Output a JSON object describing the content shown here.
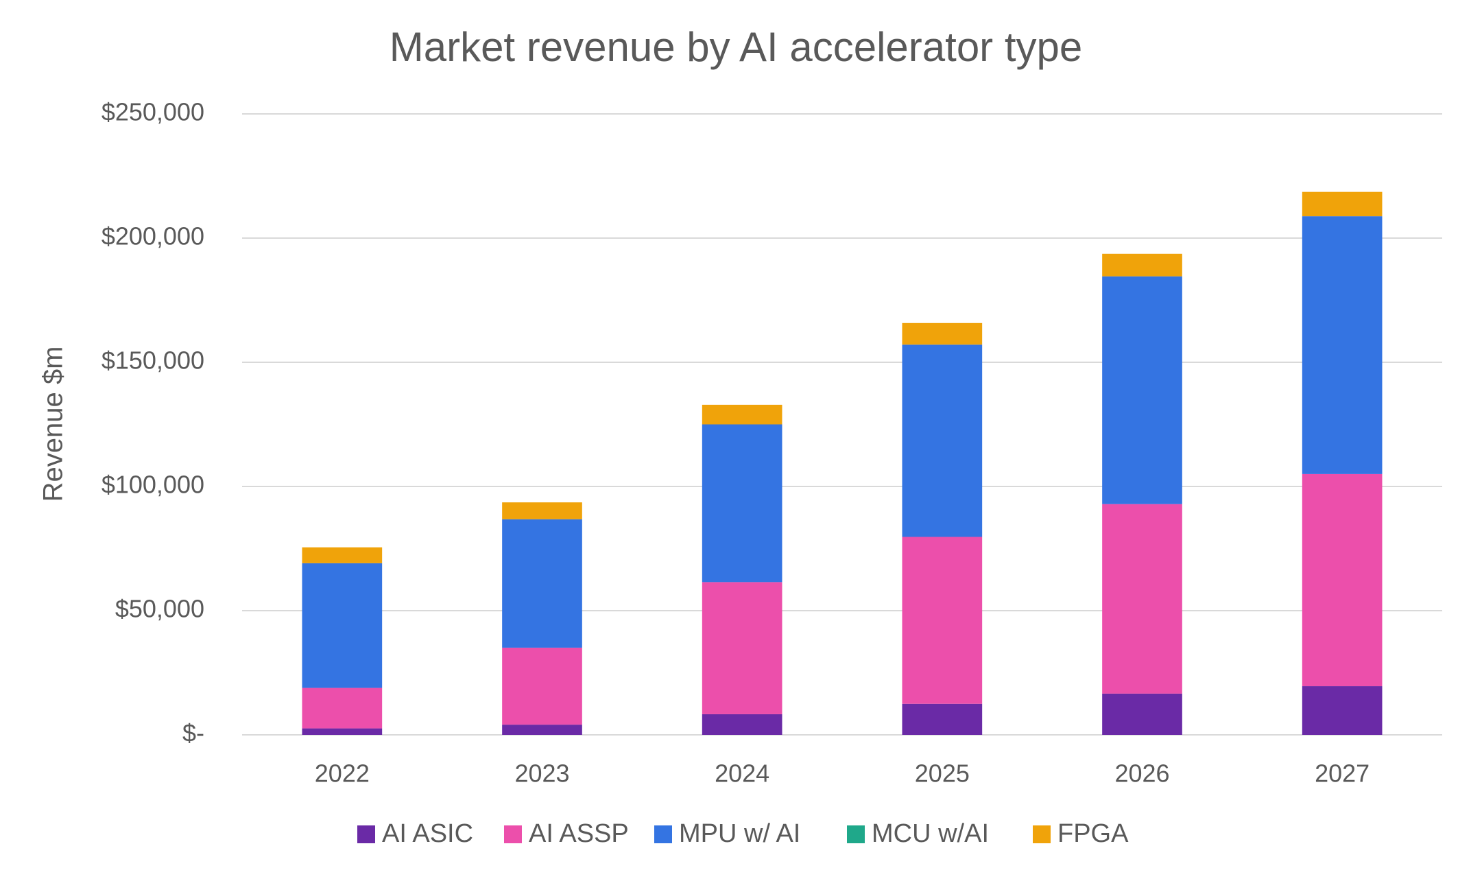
{
  "chart_data": {
    "type": "stacked_bar",
    "title": "Market revenue by AI accelerator type",
    "y_label": "Revenue $m",
    "categories": [
      "2022",
      "2023",
      "2024",
      "2025",
      "2026",
      "2027"
    ],
    "series": [
      {
        "name": "AI ASIC",
        "color": "#6a2aa6",
        "values": [
          2600,
          4100,
          8300,
          12500,
          16600,
          19600
        ]
      },
      {
        "name": "AI ASSP",
        "color": "#ec4fab",
        "values": [
          16300,
          31000,
          53200,
          67200,
          76300,
          85400
        ]
      },
      {
        "name": "MPU w/ AI",
        "color": "#3474e2",
        "values": [
          50200,
          51700,
          63500,
          77400,
          91700,
          103800
        ]
      },
      {
        "name": "MCU w/AI",
        "color": "#1fa88a",
        "values": [
          0,
          0,
          0,
          0,
          0,
          0
        ]
      },
      {
        "name": "FPGA",
        "color": "#f0a30a",
        "values": [
          6400,
          6800,
          7900,
          8700,
          9100,
          9800
        ]
      }
    ],
    "ylim": [
      0,
      250000
    ],
    "yticks": [
      {
        "value": 0,
        "label": "$-"
      },
      {
        "value": 50000,
        "label": "$50,000"
      },
      {
        "value": 100000,
        "label": "$100,000"
      },
      {
        "value": 150000,
        "label": "$150,000"
      },
      {
        "value": 200000,
        "label": "$200,000"
      },
      {
        "value": 250000,
        "label": "$250,000"
      }
    ],
    "grid": true,
    "legend": "bottom"
  }
}
